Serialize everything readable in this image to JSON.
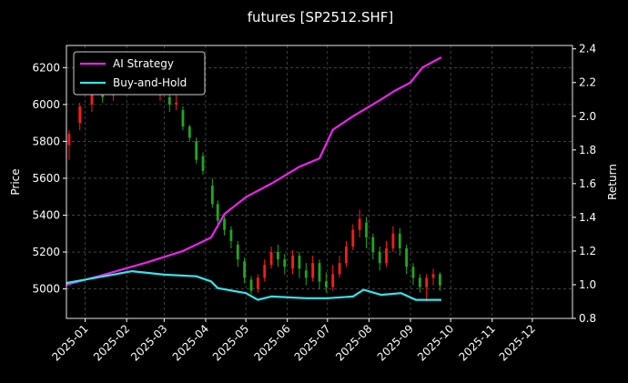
{
  "chart_data": {
    "type": "line",
    "title": "futures [SP2512.SHF]",
    "y_left_label": "Price",
    "y_right_label": "Return",
    "y_left_range": [
      4840,
      6320
    ],
    "y_right_range": [
      0.8,
      2.42
    ],
    "y_left_ticks": [
      "5000",
      "5200",
      "5400",
      "5600",
      "5800",
      "6000",
      "6200"
    ],
    "y_right_ticks": [
      "0.8",
      "1.0",
      "1.2",
      "1.4",
      "1.6",
      "1.8",
      "2.0",
      "2.2",
      "2.4"
    ],
    "x_range": [
      "2024-12-18",
      "2025-12-31"
    ],
    "x_ticks": [
      "2025-01",
      "2025-02",
      "2025-03",
      "2025-04",
      "2025-05",
      "2025-06",
      "2025-07",
      "2025-08",
      "2025-09",
      "2025-10",
      "2025-11",
      "2025-12"
    ],
    "grid": true,
    "legend_position": "top-left",
    "colors": {
      "up": "#ff1a1a",
      "down": "#1fa81f",
      "strategy": "#ee22ee",
      "buyhold": "#33e6ee"
    },
    "series": [
      {
        "name": "AI Strategy",
        "axis": "right",
        "points": [
          [
            "2024-12-18",
            1.0
          ],
          [
            "2025-01-15",
            1.06
          ],
          [
            "2025-02-15",
            1.13
          ],
          [
            "2025-03-15",
            1.2
          ],
          [
            "2025-04-05",
            1.28
          ],
          [
            "2025-04-15",
            1.42
          ],
          [
            "2025-05-01",
            1.52
          ],
          [
            "2025-05-20",
            1.6
          ],
          [
            "2025-06-10",
            1.7
          ],
          [
            "2025-06-25",
            1.75
          ],
          [
            "2025-07-05",
            1.92
          ],
          [
            "2025-07-20",
            2.0
          ],
          [
            "2025-08-10",
            2.1
          ],
          [
            "2025-08-20",
            2.15
          ],
          [
            "2025-09-01",
            2.2
          ],
          [
            "2025-09-10",
            2.29
          ],
          [
            "2025-09-24",
            2.35
          ]
        ]
      },
      {
        "name": "Buy-and-Hold",
        "axis": "right",
        "points": [
          [
            "2024-12-18",
            1.01
          ],
          [
            "2025-01-15",
            1.05
          ],
          [
            "2025-02-05",
            1.08
          ],
          [
            "2025-03-01",
            1.06
          ],
          [
            "2025-03-25",
            1.05
          ],
          [
            "2025-04-05",
            1.02
          ],
          [
            "2025-04-10",
            0.98
          ],
          [
            "2025-05-01",
            0.95
          ],
          [
            "2025-05-10",
            0.91
          ],
          [
            "2025-05-20",
            0.93
          ],
          [
            "2025-06-15",
            0.92
          ],
          [
            "2025-07-01",
            0.92
          ],
          [
            "2025-07-20",
            0.93
          ],
          [
            "2025-07-28",
            0.97
          ],
          [
            "2025-08-10",
            0.94
          ],
          [
            "2025-08-25",
            0.95
          ],
          [
            "2025-09-05",
            0.91
          ],
          [
            "2025-09-24",
            0.91
          ]
        ]
      }
    ],
    "price_candles": [
      [
        "2024-12-20",
        5780,
        5840,
        5700,
        5860
      ],
      [
        "2024-12-28",
        5900,
        5990,
        5860,
        6010
      ],
      [
        "2025-01-06",
        6000,
        6060,
        5960,
        6090
      ],
      [
        "2025-01-14",
        6060,
        6040,
        6010,
        6090
      ],
      [
        "2025-01-22",
        6050,
        6100,
        6020,
        6120
      ],
      [
        "2025-02-02",
        6120,
        6130,
        6080,
        6160
      ],
      [
        "2025-02-08",
        6110,
        6160,
        6090,
        6180
      ],
      [
        "2025-02-26",
        6050,
        6070,
        6020,
        6080
      ],
      [
        "2025-03-05",
        6040,
        6000,
        5960,
        6070
      ],
      [
        "2025-03-10",
        6000,
        6010,
        5970,
        6050
      ],
      [
        "2025-03-15",
        5970,
        5880,
        5860,
        5990
      ],
      [
        "2025-03-20",
        5880,
        5820,
        5800,
        5890
      ],
      [
        "2025-03-25",
        5800,
        5700,
        5680,
        5820
      ],
      [
        "2025-03-30",
        5720,
        5640,
        5620,
        5740
      ],
      [
        "2025-04-06",
        5560,
        5460,
        5440,
        5600
      ],
      [
        "2025-04-10",
        5460,
        5370,
        5330,
        5480
      ],
      [
        "2025-04-15",
        5380,
        5320,
        5290,
        5400
      ],
      [
        "2025-04-20",
        5320,
        5260,
        5220,
        5340
      ],
      [
        "2025-04-25",
        5240,
        5160,
        5120,
        5260
      ],
      [
        "2025-04-30",
        5150,
        5060,
        5030,
        5170
      ],
      [
        "2025-05-05",
        5050,
        4990,
        4970,
        5070
      ],
      [
        "2025-05-10",
        5000,
        5060,
        4980,
        5080
      ],
      [
        "2025-05-15",
        5060,
        5130,
        5040,
        5160
      ],
      [
        "2025-05-20",
        5130,
        5200,
        5110,
        5230
      ],
      [
        "2025-05-25",
        5200,
        5160,
        5120,
        5240
      ],
      [
        "2025-05-30",
        5160,
        5120,
        5080,
        5190
      ],
      [
        "2025-06-05",
        5110,
        5180,
        5080,
        5210
      ],
      [
        "2025-06-10",
        5180,
        5110,
        5060,
        5200
      ],
      [
        "2025-06-15",
        5100,
        5060,
        5020,
        5140
      ],
      [
        "2025-06-20",
        5060,
        5140,
        5040,
        5180
      ],
      [
        "2025-06-25",
        5140,
        5040,
        5000,
        5160
      ],
      [
        "2025-06-30",
        5040,
        5010,
        4980,
        5090
      ],
      [
        "2025-07-05",
        5010,
        5080,
        4990,
        5130
      ],
      [
        "2025-07-10",
        5080,
        5140,
        5060,
        5180
      ],
      [
        "2025-07-15",
        5140,
        5230,
        5120,
        5260
      ],
      [
        "2025-07-20",
        5230,
        5320,
        5210,
        5350
      ],
      [
        "2025-07-25",
        5320,
        5380,
        5280,
        5430
      ],
      [
        "2025-07-30",
        5360,
        5280,
        5220,
        5390
      ],
      [
        "2025-08-04",
        5280,
        5200,
        5160,
        5300
      ],
      [
        "2025-08-09",
        5200,
        5140,
        5100,
        5230
      ],
      [
        "2025-08-14",
        5140,
        5220,
        5120,
        5260
      ],
      [
        "2025-08-19",
        5220,
        5300,
        5200,
        5340
      ],
      [
        "2025-08-24",
        5300,
        5220,
        5180,
        5330
      ],
      [
        "2025-08-29",
        5220,
        5120,
        5080,
        5240
      ],
      [
        "2025-09-03",
        5120,
        5060,
        5020,
        5140
      ],
      [
        "2025-09-08",
        5060,
        5010,
        4980,
        5080
      ],
      [
        "2025-09-13",
        5010,
        5060,
        4930,
        5080
      ],
      [
        "2025-09-18",
        5060,
        5080,
        5020,
        5110
      ],
      [
        "2025-09-23",
        5080,
        5020,
        4990,
        5090
      ]
    ]
  }
}
